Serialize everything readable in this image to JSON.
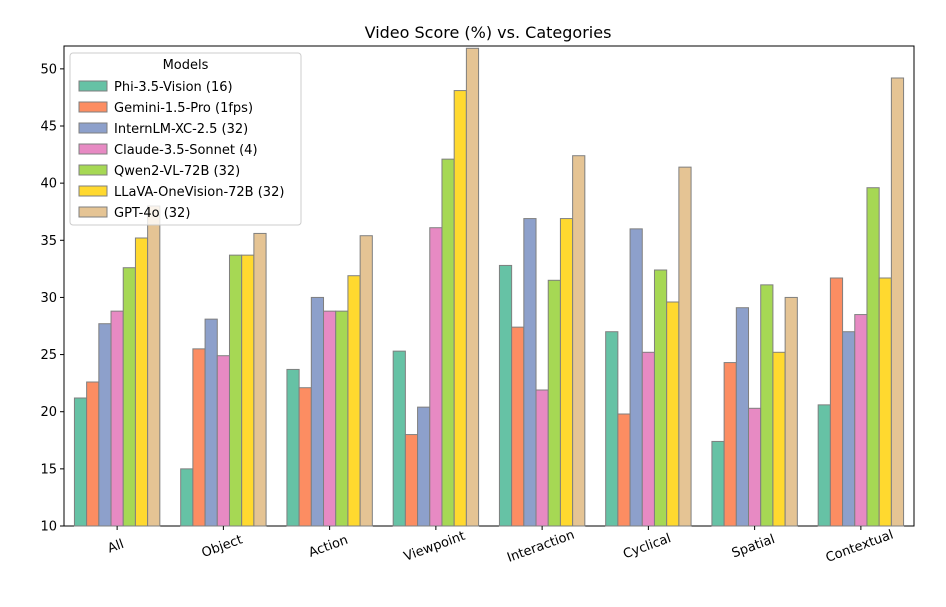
{
  "chart_data": {
    "type": "bar",
    "title": "Video Score (%) vs. Categories",
    "xlabel": "",
    "ylabel": "",
    "ylim": [
      10,
      52
    ],
    "yticks": [
      10,
      15,
      20,
      25,
      30,
      35,
      40,
      45,
      50
    ],
    "grid": false,
    "legend": {
      "title": "Models",
      "placement": "top-left"
    },
    "categories": [
      "All",
      "Object",
      "Action",
      "Viewpoint",
      "Interaction",
      "Cyclical",
      "Spatial",
      "Contextual"
    ],
    "series": [
      {
        "name": "Phi-3.5-Vision (16)",
        "color": "#66c2a5",
        "values": [
          21.2,
          15.0,
          23.7,
          25.3,
          32.8,
          27.0,
          17.4,
          20.6
        ]
      },
      {
        "name": "Gemini-1.5-Pro (1fps)",
        "color": "#fc8d62",
        "values": [
          22.6,
          25.5,
          22.1,
          18.0,
          27.4,
          19.8,
          24.3,
          31.7
        ]
      },
      {
        "name": "InternLM-XC-2.5 (32)",
        "color": "#8da0cb",
        "values": [
          27.7,
          28.1,
          30.0,
          20.4,
          36.9,
          36.0,
          29.1,
          27.0
        ]
      },
      {
        "name": "Claude-3.5-Sonnet (4)",
        "color": "#e78ac3",
        "values": [
          28.8,
          24.9,
          28.8,
          36.1,
          21.9,
          25.2,
          20.3,
          28.5
        ]
      },
      {
        "name": "Qwen2-VL-72B (32)",
        "color": "#a6d854",
        "values": [
          32.6,
          33.7,
          28.8,
          42.1,
          31.5,
          32.4,
          31.1,
          39.6
        ]
      },
      {
        "name": "LLaVA-OneVision-72B (32)",
        "color": "#ffd92f",
        "values": [
          35.2,
          33.7,
          31.9,
          48.1,
          36.9,
          29.6,
          25.2,
          31.7
        ]
      },
      {
        "name": "GPT-4o (32)",
        "color": "#e5c494",
        "values": [
          38.0,
          35.6,
          35.4,
          51.8,
          42.4,
          41.4,
          30.0,
          49.2
        ]
      }
    ]
  }
}
